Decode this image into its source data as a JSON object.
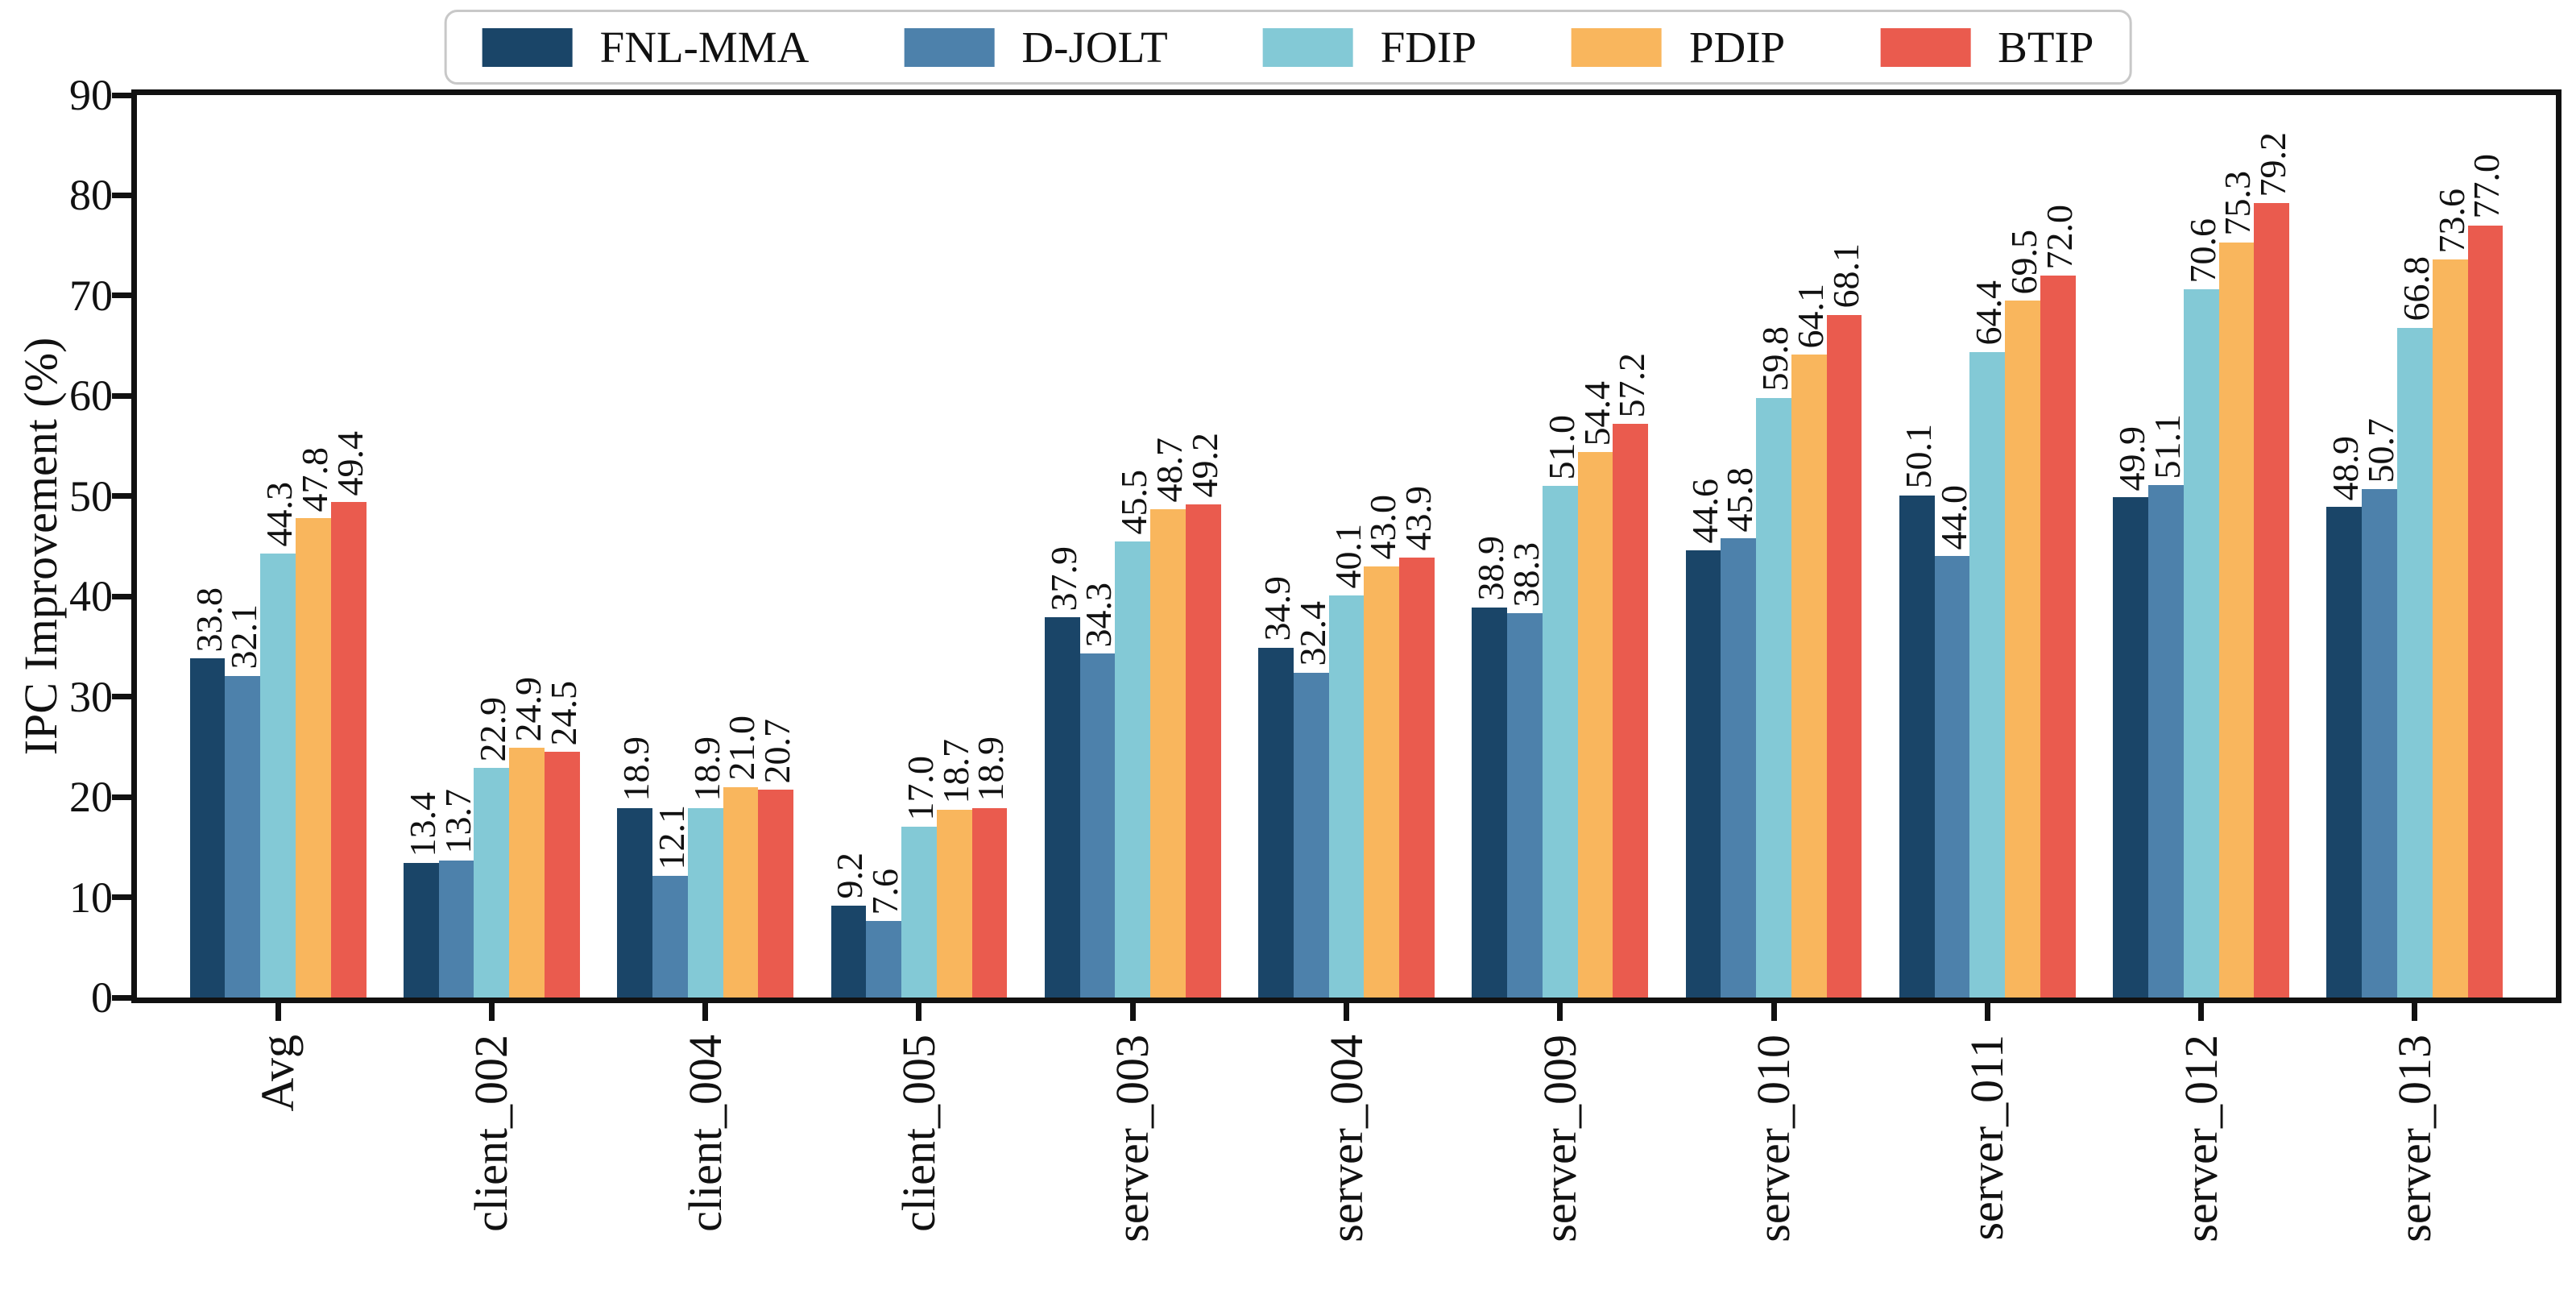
{
  "chart_data": {
    "type": "bar",
    "title": "",
    "xlabel": "",
    "ylabel": "IPC Improvement (%)",
    "ylim": [
      0,
      90
    ],
    "yticks": [
      0,
      10,
      20,
      30,
      40,
      50,
      60,
      70,
      80,
      90
    ],
    "grid": false,
    "legend_position": "top-center",
    "value_labels": "one-decimal, rotated 90°",
    "categories": [
      "Avg",
      "client_002",
      "client_004",
      "client_005",
      "server_003",
      "server_004",
      "server_009",
      "server_010",
      "server_011",
      "server_012",
      "server_013"
    ],
    "series": [
      {
        "name": "FNL-MMA",
        "color": "#1a4568",
        "values": [
          33.8,
          13.4,
          18.9,
          9.2,
          37.9,
          34.9,
          38.9,
          44.6,
          50.1,
          49.9,
          48.9
        ]
      },
      {
        "name": "D-JOLT",
        "color": "#4d81ab",
        "values": [
          32.1,
          13.7,
          12.1,
          7.6,
          34.3,
          32.4,
          38.3,
          45.8,
          44.0,
          51.1,
          50.7
        ]
      },
      {
        "name": "FDIP",
        "color": "#83c9d6",
        "values": [
          44.3,
          22.9,
          18.9,
          17.0,
          45.5,
          40.1,
          51.0,
          59.8,
          64.4,
          70.6,
          66.8
        ]
      },
      {
        "name": "PDIP",
        "color": "#f9b65d",
        "values": [
          47.8,
          24.9,
          21.0,
          18.7,
          48.7,
          43.0,
          54.4,
          64.1,
          69.5,
          75.3,
          73.6
        ]
      },
      {
        "name": "BTIP",
        "color": "#ea5b4e",
        "values": [
          49.4,
          24.5,
          20.7,
          18.9,
          49.2,
          43.9,
          57.2,
          68.1,
          72.0,
          79.2,
          77.0
        ]
      }
    ]
  },
  "colors": {
    "axis_and_text": "#111111",
    "legend_border": "#c8c8c8",
    "background": "#ffffff"
  }
}
